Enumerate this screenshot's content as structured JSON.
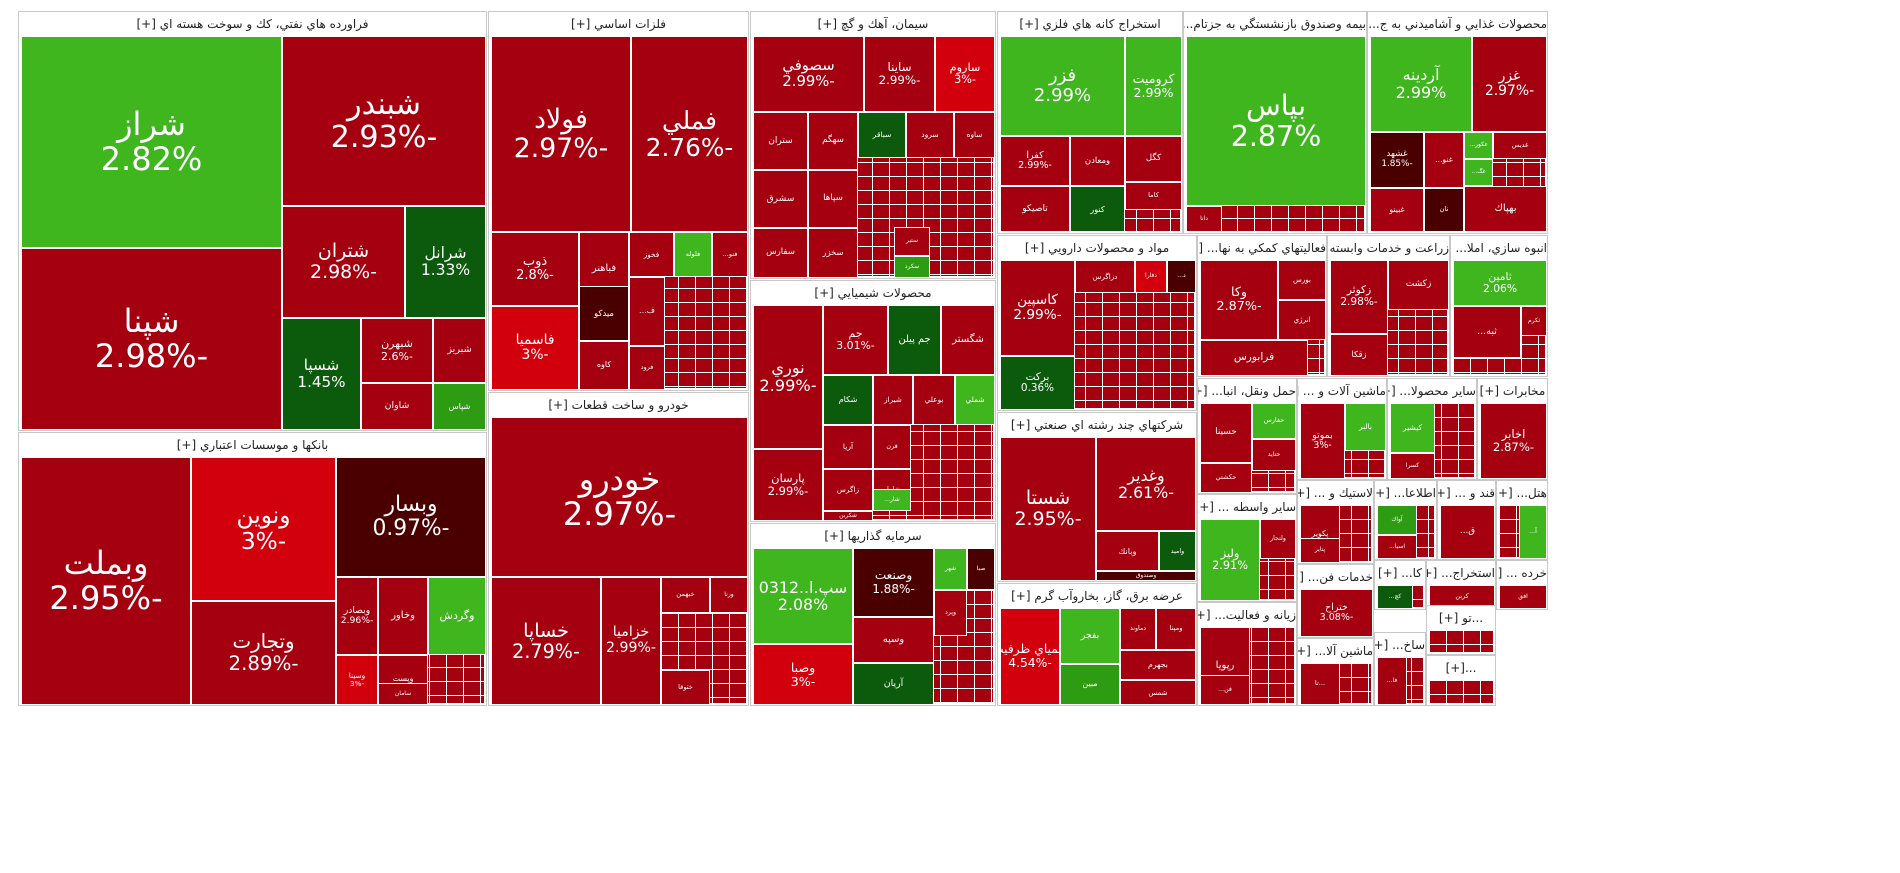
{
  "chart_data": {
    "type": "treemap",
    "colors": {
      "up_strong": "#2e9c12",
      "up": "#3fb51e",
      "up_dark": "#0c5a0c",
      "down": "#a5000f",
      "down_light": "#d2000c",
      "down_dark": "#4b0000"
    },
    "sectors": [
      {
        "name": "فراورده هاي نفتي، كك و سوخت هسته اي [+]",
        "stocks": [
          {
            "symbol": "شراز",
            "change": "2.82%"
          },
          {
            "symbol": "شبندر",
            "change": "-2.93%"
          },
          {
            "symbol": "شپنا",
            "change": "-2.98%"
          },
          {
            "symbol": "شتران",
            "change": "-2.98%"
          },
          {
            "symbol": "شرانل",
            "change": "1.33%"
          },
          {
            "symbol": "شسپا",
            "change": "1.45%"
          },
          {
            "symbol": "شبهرن",
            "change": "-2.6%"
          },
          {
            "symbol": "شبريز",
            "change": ""
          },
          {
            "symbol": "شاوان",
            "change": ""
          },
          {
            "symbol": "شپاس",
            "change": ""
          }
        ]
      },
      {
        "name": "فلزات اساسي [+]",
        "stocks": [
          {
            "symbol": "فولاد",
            "change": "-2.97%"
          },
          {
            "symbol": "فملي",
            "change": "-2.76%"
          },
          {
            "symbol": "ذوب",
            "change": "-2.8%"
          },
          {
            "symbol": "فباهنر",
            "change": ""
          },
          {
            "symbol": "فخوز",
            "change": ""
          },
          {
            "symbol": "فلوله",
            "change": ""
          },
          {
            "symbol": "فنو...",
            "change": ""
          },
          {
            "symbol": "ميدكو",
            "change": ""
          },
          {
            "symbol": "فاسميا",
            "change": "-3%"
          },
          {
            "symbol": "كاوه",
            "change": ""
          },
          {
            "symbol": "فرود",
            "change": ""
          },
          {
            "symbol": "ف...",
            "change": ""
          }
        ]
      },
      {
        "name": "سيمان، آهك و گچ [+]",
        "stocks": [
          {
            "symbol": "سصوفي",
            "change": "-2.99%"
          },
          {
            "symbol": "ساينا",
            "change": "-2.99%"
          },
          {
            "symbol": "ساروم",
            "change": "-3%"
          },
          {
            "symbol": "ستران",
            "change": ""
          },
          {
            "symbol": "سهگم",
            "change": ""
          },
          {
            "symbol": "سباقر",
            "change": ""
          },
          {
            "symbol": "سرود",
            "change": ""
          },
          {
            "symbol": "ساوه",
            "change": ""
          },
          {
            "symbol": "سشرق",
            "change": ""
          },
          {
            "symbol": "سپاها",
            "change": ""
          },
          {
            "symbol": "سفارس",
            "change": ""
          },
          {
            "symbol": "سخزر",
            "change": ""
          },
          {
            "symbol": "سكرد",
            "change": ""
          },
          {
            "symbol": "ستير",
            "change": ""
          }
        ]
      },
      {
        "name": "استخراج كانه هاي فلزي [+]",
        "stocks": [
          {
            "symbol": "فزر",
            "change": "2.99%"
          },
          {
            "symbol": "كروميت",
            "change": "2.99%"
          },
          {
            "symbol": "كگل",
            "change": ""
          },
          {
            "symbol": "ومعادن",
            "change": ""
          },
          {
            "symbol": "كاما",
            "change": ""
          },
          {
            "symbol": "تاصيكو",
            "change": ""
          },
          {
            "symbol": "كنور",
            "change": ""
          },
          {
            "symbol": "كفرا",
            "change": "-2.99%"
          }
        ]
      },
      {
        "name": "بيمه وصندوق بازنشستگي به جزتام... [+]",
        "stocks": [
          {
            "symbol": "بپاس",
            "change": "2.87%"
          },
          {
            "symbol": "دانا",
            "change": ""
          }
        ]
      },
      {
        "name": "محصولات غذايي و آشاميدني به ج... [+]",
        "stocks": [
          {
            "symbol": "آردينه",
            "change": "2.99%"
          },
          {
            "symbol": "غزر",
            "change": "-2.97%"
          },
          {
            "symbol": "غدیس",
            "change": ""
          },
          {
            "symbol": "غكور...",
            "change": ""
          },
          {
            "symbol": "غنو...",
            "change": ""
          },
          {
            "symbol": "غشهد",
            "change": "-1.85%"
          },
          {
            "symbol": "غگ...",
            "change": ""
          },
          {
            "symbol": "نان",
            "change": ""
          },
          {
            "symbol": "بهپاك",
            "change": ""
          },
          {
            "symbol": "غبينو",
            "change": ""
          }
        ]
      },
      {
        "name": "مواد و محصولات دارويي [+]",
        "stocks": [
          {
            "symbol": "كاسپين",
            "change": "-2.99%"
          },
          {
            "symbol": "دزاگرس",
            "change": ""
          },
          {
            "symbol": "دفارا",
            "change": ""
          },
          {
            "symbol": "د...",
            "change": ""
          },
          {
            "symbol": "بركت",
            "change": "0.36%"
          }
        ]
      },
      {
        "name": "فعاليتهاي كمكي به نها... [+]",
        "stocks": [
          {
            "symbol": "وكا",
            "change": "-2.87%"
          },
          {
            "symbol": "بورس",
            "change": ""
          },
          {
            "symbol": "انرژي",
            "change": ""
          },
          {
            "symbol": "فرابورس",
            "change": ""
          }
        ]
      },
      {
        "name": "زراعت و خدمات وابسته [+]",
        "stocks": [
          {
            "symbol": "زكوثر",
            "change": "-2.98%"
          },
          {
            "symbol": "زكشت",
            "change": ""
          },
          {
            "symbol": "زقكا",
            "change": ""
          }
        ]
      },
      {
        "name": "انبوه سازي، املا... [+]",
        "stocks": [
          {
            "symbol": "ثامين",
            "change": "2.06%"
          },
          {
            "symbol": "ثكرم",
            "change": ""
          },
          {
            "symbol": "ثبه...",
            "change": ""
          }
        ]
      },
      {
        "name": "محصولات شيميايي [+]",
        "stocks": [
          {
            "symbol": "نوري",
            "change": "-2.99%"
          },
          {
            "symbol": "جم",
            "change": "-3.01%"
          },
          {
            "symbol": "جم پيلن",
            "change": ""
          },
          {
            "symbol": "شگستر",
            "change": ""
          },
          {
            "symbol": "شكام",
            "change": ""
          },
          {
            "symbol": "شيراز",
            "change": ""
          },
          {
            "symbol": "بوعلي",
            "change": ""
          },
          {
            "symbol": "شملي",
            "change": ""
          },
          {
            "symbol": "آريا",
            "change": ""
          },
          {
            "symbol": "قرن",
            "change": ""
          },
          {
            "symbol": "پارسان",
            "change": "-2.99%"
          },
          {
            "symbol": "زاگرس",
            "change": ""
          },
          {
            "symbol": "شامل",
            "change": ""
          },
          {
            "symbol": "شكربن",
            "change": ""
          },
          {
            "symbol": "شار...",
            "change": ""
          }
        ]
      },
      {
        "name": "شركتهاي چند رشته اي صنعتي [+]",
        "stocks": [
          {
            "symbol": "شستا",
            "change": "-2.95%"
          },
          {
            "symbol": "وغدير",
            "change": "-2.61%"
          },
          {
            "symbol": "وبانك",
            "change": ""
          },
          {
            "symbol": "واميد",
            "change": ""
          },
          {
            "symbol": "وصندوق",
            "change": ""
          }
        ]
      },
      {
        "name": "حمل ونقل، انبا... [+]",
        "stocks": [
          {
            "symbol": "حسينا",
            "change": ""
          },
          {
            "symbol": "حفارس",
            "change": ""
          },
          {
            "symbol": "حتايد",
            "change": ""
          },
          {
            "symbol": "حكشتي",
            "change": ""
          }
        ]
      },
      {
        "name": "ماشين آلات و ... [+]",
        "stocks": [
          {
            "symbol": "بالبر",
            "change": ""
          },
          {
            "symbol": "بموتو",
            "change": "-3%"
          }
        ]
      },
      {
        "name": "ساير محصولا... [+]",
        "stocks": [
          {
            "symbol": "كيشير",
            "change": ""
          },
          {
            "symbol": "كسرا",
            "change": ""
          }
        ]
      },
      {
        "name": "مخابرات [+]",
        "stocks": [
          {
            "symbol": "اخابر",
            "change": "-2.87%"
          }
        ]
      },
      {
        "name": "بانكها و موسسات اعتباري [+]",
        "stocks": [
          {
            "symbol": "وبملت",
            "change": "-2.95%"
          },
          {
            "symbol": "ونوين",
            "change": "-3%"
          },
          {
            "symbol": "وبسار",
            "change": "-0.97%"
          },
          {
            "symbol": "وتجارت",
            "change": "-2.89%"
          },
          {
            "symbol": "وبصادر",
            "change": "-2.96%"
          },
          {
            "symbol": "وخاور",
            "change": ""
          },
          {
            "symbol": "وگردش",
            "change": ""
          },
          {
            "symbol": "وپست",
            "change": ""
          },
          {
            "symbol": "سامان",
            "change": ""
          },
          {
            "symbol": "وسينا",
            "change": "-3%"
          }
        ]
      },
      {
        "name": "خودرو و ساخت قطعات [+]",
        "stocks": [
          {
            "symbol": "خودرو",
            "change": "-2.97%"
          },
          {
            "symbol": "خساپا",
            "change": "-2.79%"
          },
          {
            "symbol": "خزاميا",
            "change": "-2.99%"
          },
          {
            "symbol": "خبهمن",
            "change": ""
          },
          {
            "symbol": "ورنا",
            "change": ""
          },
          {
            "symbol": "ختوقا",
            "change": ""
          }
        ]
      },
      {
        "name": "سرمايه گذاريها [+]",
        "stocks": [
          {
            "symbol": "سپ.ا..0312",
            "change": "2.08%"
          },
          {
            "symbol": "وصنعت",
            "change": "-1.88%"
          },
          {
            "symbol": "شهر",
            "change": ""
          },
          {
            "symbol": "صبا",
            "change": ""
          },
          {
            "symbol": "وسپه",
            "change": ""
          },
          {
            "symbol": "وپرد",
            "change": ""
          },
          {
            "symbol": "وصبا",
            "change": "-3%"
          },
          {
            "symbol": "آريان",
            "change": ""
          }
        ]
      },
      {
        "name": "عرضه برق، گاز، بخاروآب گرم [+]",
        "stocks": [
          {
            "symbol": "كيمياي ظرفيت",
            "change": "-4.54%"
          },
          {
            "symbol": "بفجر",
            "change": ""
          },
          {
            "symbol": "دماوند",
            "change": ""
          },
          {
            "symbol": "ومپنا",
            "change": ""
          },
          {
            "symbol": "بجهرم",
            "change": ""
          },
          {
            "symbol": "مبين",
            "change": ""
          },
          {
            "symbol": "شمس",
            "change": ""
          }
        ]
      },
      {
        "name": "ساير واسطه ... [+]",
        "stocks": [
          {
            "symbol": "ولتجار",
            "change": ""
          },
          {
            "symbol": "وليز",
            "change": "2.91%"
          }
        ]
      },
      {
        "name": "زيانه و فعاليت... [+]",
        "stocks": [
          {
            "symbol": "رپويا",
            "change": ""
          },
          {
            "symbol": "فن...",
            "change": ""
          }
        ]
      },
      {
        "name": "لاستيك و ... [+]",
        "stocks": [
          {
            "symbol": "پكوير",
            "change": ""
          },
          {
            "symbol": "پتاير",
            "change": ""
          }
        ]
      },
      {
        "name": "اطلاعا... [+]",
        "stocks": [
          {
            "symbol": "آواك",
            "change": ""
          },
          {
            "symbol": "اسيا...",
            "change": ""
          }
        ]
      },
      {
        "name": "خدمات فن... [+]",
        "stocks": [
          {
            "symbol": "ختراح",
            "change": "-3.08%"
          }
        ]
      },
      {
        "name": "كا... [+]",
        "stocks": [
          {
            "symbol": "كچ...",
            "change": ""
          }
        ]
      },
      {
        "name": "استخراج... [+]",
        "stocks": [
          {
            "symbol": "كربن",
            "change": ""
          }
        ]
      },
      {
        "name": "خرده ... [+]",
        "stocks": [
          {
            "symbol": "افق",
            "change": ""
          }
        ]
      },
      {
        "name": "قند و ... [+]",
        "stocks": [
          {
            "symbol": "ق...",
            "change": ""
          }
        ]
      },
      {
        "name": "هتل... [+]",
        "stocks": [
          {
            "symbol": "آ...",
            "change": ""
          }
        ]
      },
      {
        "name": "ماشين آلا... [+]",
        "stocks": [
          {
            "symbol": "...تا",
            "change": ""
          }
        ]
      },
      {
        "name": "ساخ... [+]",
        "stocks": [
          {
            "symbol": "فا...",
            "change": ""
          }
        ]
      },
      {
        "name": "...تو [+]",
        "stocks": []
      },
      {
        "name": "...[+]",
        "stocks": []
      }
    ]
  }
}
